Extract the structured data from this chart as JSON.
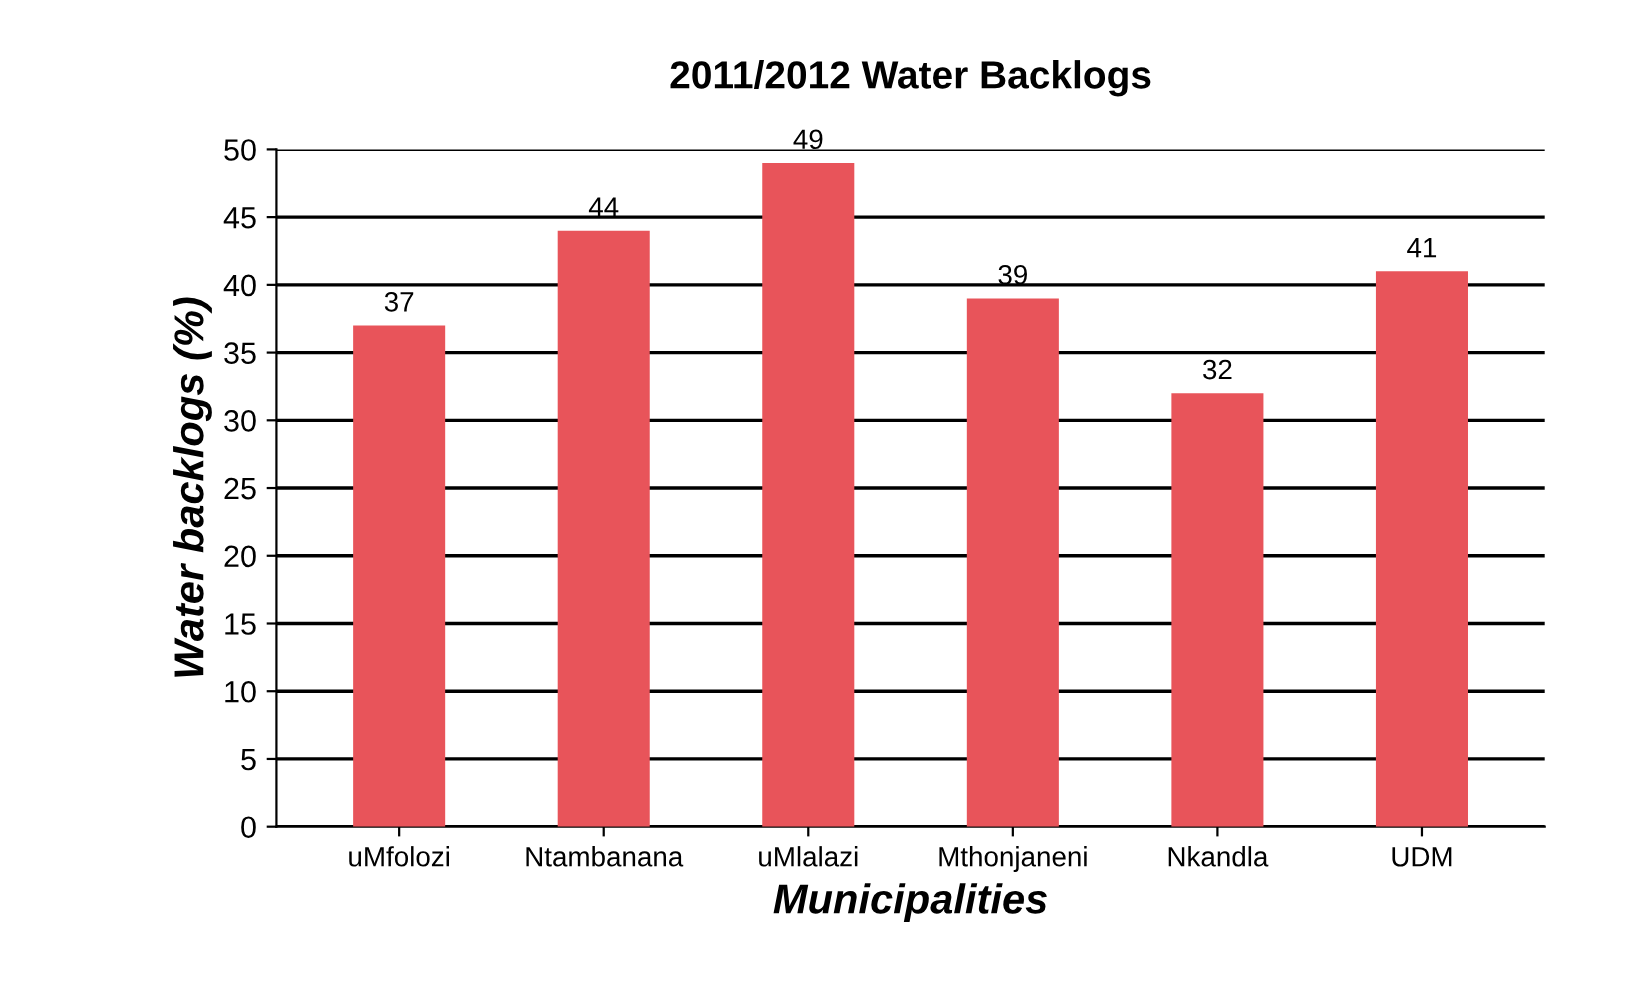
{
  "chart_data": {
    "type": "bar",
    "title": "2011/2012 Water Backlogs",
    "xlabel": "Municipalities",
    "ylabel": "Water backlogs (%)",
    "categories": [
      "uMfolozi",
      "Ntambanana",
      "uMlalazi",
      "Mthonjaneni",
      "Nkandla",
      "UDM"
    ],
    "values": [
      37,
      44,
      49,
      39,
      32,
      41
    ],
    "color": "#e8545a",
    "ylim": [
      0,
      50
    ],
    "yticks": [
      0,
      5,
      10,
      15,
      20,
      25,
      30,
      35,
      40,
      45,
      50
    ],
    "grid": "y",
    "data_labels": true
  }
}
